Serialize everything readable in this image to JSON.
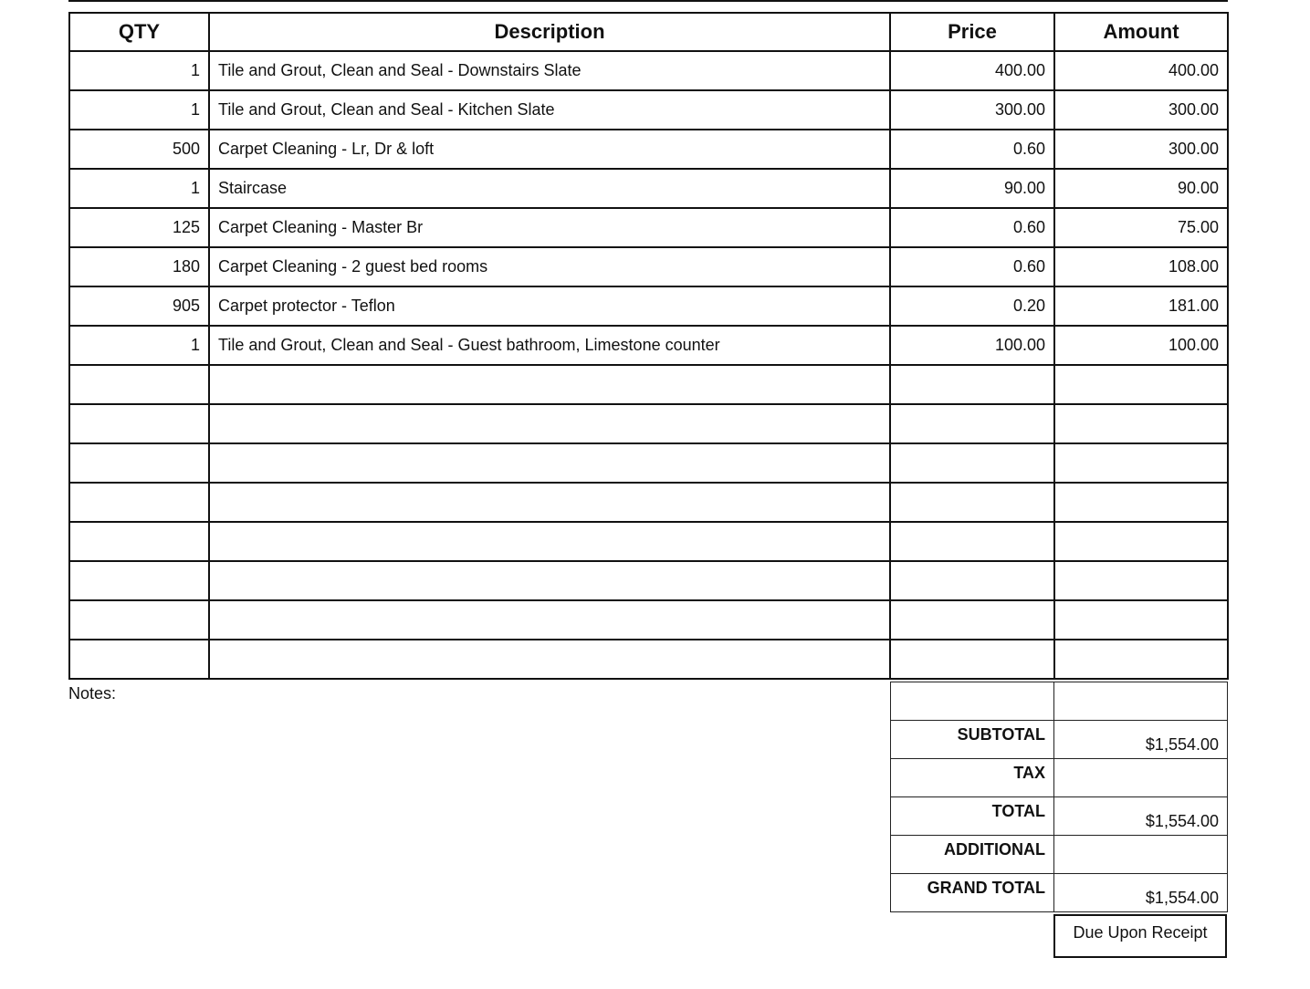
{
  "headers": {
    "qty": "QTY",
    "description": "Description",
    "price": "Price",
    "amount": "Amount"
  },
  "items": [
    {
      "qty": "1",
      "description": "Tile and Grout, Clean and Seal - Downstairs Slate",
      "price": "400.00",
      "amount": "400.00"
    },
    {
      "qty": "1",
      "description": "Tile and Grout, Clean and Seal - Kitchen Slate",
      "price": "300.00",
      "amount": "300.00"
    },
    {
      "qty": "500",
      "description": "Carpet Cleaning - Lr,  Dr & loft",
      "price": "0.60",
      "amount": "300.00"
    },
    {
      "qty": "1",
      "description": "Staircase",
      "price": "90.00",
      "amount": "90.00"
    },
    {
      "qty": "125",
      "description": "Carpet Cleaning - Master Br",
      "price": "0.60",
      "amount": "75.00"
    },
    {
      "qty": "180",
      "description": "Carpet Cleaning - 2 guest bed rooms",
      "price": "0.60",
      "amount": "108.00"
    },
    {
      "qty": "905",
      "description": "Carpet protector - Teflon",
      "price": "0.20",
      "amount": "181.00"
    },
    {
      "qty": "1",
      "description": "Tile and Grout, Clean and Seal - Guest bathroom, Limestone counter",
      "price": "100.00",
      "amount": "100.00"
    }
  ],
  "notes_label": "Notes:",
  "summary": {
    "subtotal_label": "SUBTOTAL",
    "subtotal": "$1,554.00",
    "tax_label": "TAX",
    "tax": "",
    "total_label": "TOTAL",
    "total": "$1,554.00",
    "additional_label": "ADDITIONAL",
    "additional": "",
    "grand_total_label": "GRAND TOTAL",
    "grand_total": "$1,554.00"
  },
  "terms": "Due Upon Receipt"
}
